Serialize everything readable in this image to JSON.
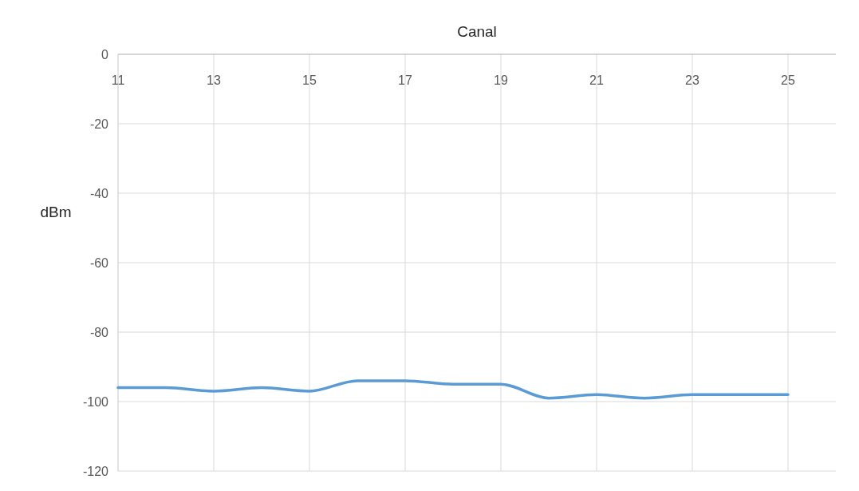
{
  "chart_data": {
    "type": "line",
    "title": "Canal",
    "ylabel": "dBm",
    "x": [
      11,
      12,
      13,
      14,
      15,
      16,
      17,
      18,
      19,
      20,
      21,
      22,
      23,
      24,
      25
    ],
    "series": [
      {
        "color": "#5b9bd5",
        "values": [
          -96,
          -96,
          -97,
          -96,
          -97,
          -94,
          -94,
          -95,
          -95,
          -99,
          -98,
          -99,
          -98,
          -98,
          -98
        ]
      }
    ],
    "xlim": [
      11,
      26
    ],
    "xticks": [
      11,
      13,
      15,
      17,
      19,
      21,
      23,
      25
    ],
    "ylim": [
      -120,
      0
    ],
    "yticks": [
      0,
      -20,
      -40,
      -60,
      -80,
      -100,
      -120
    ],
    "grid": true,
    "marker": "none",
    "line_style": "solid"
  }
}
